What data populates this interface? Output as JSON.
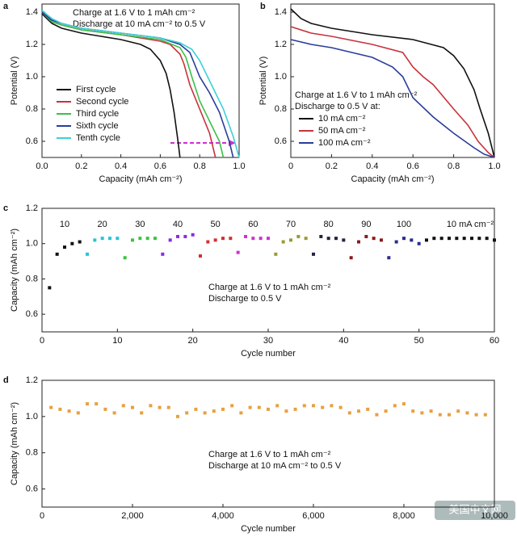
{
  "watermark": "美国中文网",
  "chart_data": [
    {
      "type": "line",
      "panel_label": "a",
      "xlabel": "Capacity (mAh cm⁻²)",
      "ylabel": "Potential (V)",
      "annotations": [
        "Charge at 1.6 V to 1 mAh cm⁻²",
        "Discharge at 10 mA cm⁻² to 0.5 V"
      ],
      "xlim": [
        0,
        1.0
      ],
      "ylim": [
        0.5,
        1.45
      ],
      "xticks": [
        {
          "value": 0,
          "label": "0.0"
        },
        0.2,
        0.4,
        0.6,
        0.8,
        {
          "value": 1,
          "label": "1.0"
        }
      ],
      "yticks": [
        0.6,
        0.8,
        {
          "value": 1,
          "label": "1.0"
        },
        1.2,
        1.4
      ],
      "legend": "lower left",
      "series": [
        {
          "name": "First cycle",
          "color": "#111111",
          "x": [
            0,
            0.05,
            0.1,
            0.2,
            0.3,
            0.4,
            0.5,
            0.55,
            0.6,
            0.63,
            0.65,
            0.67,
            0.69,
            0.7
          ],
          "values": [
            1.39,
            1.33,
            1.3,
            1.27,
            1.25,
            1.23,
            1.2,
            1.17,
            1.1,
            1.02,
            0.92,
            0.78,
            0.6,
            0.5
          ]
        },
        {
          "name": "Second cycle",
          "color": "#c8323c",
          "x": [
            0,
            0.05,
            0.1,
            0.2,
            0.4,
            0.6,
            0.65,
            0.7,
            0.72,
            0.75,
            0.8,
            0.85,
            0.88
          ],
          "values": [
            1.4,
            1.34,
            1.32,
            1.29,
            1.26,
            1.22,
            1.2,
            1.14,
            1.08,
            0.95,
            0.8,
            0.65,
            0.5
          ]
        },
        {
          "name": "Third cycle",
          "color": "#3cbf4a",
          "x": [
            0,
            0.05,
            0.1,
            0.2,
            0.4,
            0.6,
            0.7,
            0.73,
            0.76,
            0.8,
            0.86,
            0.9,
            0.92
          ],
          "values": [
            1.4,
            1.34,
            1.32,
            1.29,
            1.26,
            1.23,
            1.18,
            1.12,
            1.0,
            0.85,
            0.7,
            0.6,
            0.5
          ]
        },
        {
          "name": "Sixth cycle",
          "color": "#2a3c9c",
          "x": [
            0,
            0.05,
            0.1,
            0.2,
            0.4,
            0.6,
            0.7,
            0.75,
            0.8,
            0.85,
            0.9,
            0.95,
            0.97
          ],
          "values": [
            1.4,
            1.35,
            1.33,
            1.3,
            1.27,
            1.24,
            1.2,
            1.15,
            1.0,
            0.9,
            0.78,
            0.6,
            0.5
          ]
        },
        {
          "name": "Tenth cycle",
          "color": "#3cd0d8",
          "x": [
            0,
            0.05,
            0.1,
            0.2,
            0.4,
            0.6,
            0.7,
            0.76,
            0.8,
            0.86,
            0.92,
            0.97,
            1.0
          ],
          "values": [
            1.41,
            1.36,
            1.33,
            1.3,
            1.27,
            1.24,
            1.21,
            1.17,
            1.1,
            0.95,
            0.8,
            0.63,
            0.5
          ]
        }
      ]
    },
    {
      "type": "line",
      "panel_label": "b",
      "xlabel": "Capacity (mAh cm⁻²)",
      "ylabel": "Potential (V)",
      "annotations": [
        "Charge at 1.6 V to 1 mAh cm⁻²",
        "Discharge to 0.5 V at:"
      ],
      "xlim": [
        0,
        1.0
      ],
      "ylim": [
        0.5,
        1.45
      ],
      "xticks": [
        0,
        0.2,
        0.4,
        0.6,
        0.8,
        {
          "value": 1,
          "label": "1.0"
        }
      ],
      "yticks": [
        0.6,
        0.8,
        {
          "value": 1,
          "label": "1.0"
        },
        1.2,
        1.4
      ],
      "legend": "lower left",
      "legend_text_colored": true,
      "series": [
        {
          "name": "10 mA cm⁻²",
          "color": "#111111",
          "x": [
            0,
            0.05,
            0.1,
            0.2,
            0.4,
            0.6,
            0.75,
            0.8,
            0.85,
            0.9,
            0.93,
            0.97,
            1.0
          ],
          "values": [
            1.42,
            1.36,
            1.33,
            1.3,
            1.26,
            1.23,
            1.18,
            1.13,
            1.05,
            0.92,
            0.8,
            0.65,
            0.5
          ]
        },
        {
          "name": "50 mA cm⁻²",
          "color": "#c8323c",
          "x": [
            0,
            0.1,
            0.2,
            0.4,
            0.55,
            0.6,
            0.65,
            0.7,
            0.8,
            0.87,
            0.92,
            0.97,
            1.0
          ],
          "values": [
            1.31,
            1.27,
            1.25,
            1.2,
            1.15,
            1.06,
            1.0,
            0.95,
            0.8,
            0.7,
            0.6,
            0.53,
            0.5
          ]
        },
        {
          "name": "100 mA cm⁻²",
          "color": "#2a3c9c",
          "x": [
            0,
            0.1,
            0.2,
            0.4,
            0.5,
            0.55,
            0.6,
            0.7,
            0.8,
            0.9,
            0.95,
            1.0
          ],
          "values": [
            1.23,
            1.2,
            1.18,
            1.12,
            1.06,
            1.0,
            0.87,
            0.75,
            0.65,
            0.56,
            0.52,
            0.5
          ]
        }
      ]
    },
    {
      "type": "scatter",
      "panel_label": "c",
      "xlabel": "Cycle number",
      "ylabel": "Capacity (mAh cm⁻²)",
      "annotations": [
        "Charge at 1.6 V to 1 mAh cm⁻²",
        "Discharge to 0.5 V"
      ],
      "xlim": [
        0,
        60
      ],
      "ylim": [
        0.5,
        1.2
      ],
      "xticks": [
        0,
        10,
        20,
        30,
        40,
        50,
        60
      ],
      "yticks": [
        0.6,
        0.8,
        {
          "value": 1,
          "label": "1.0"
        },
        1.2
      ],
      "legend": "group labels",
      "series": [
        {
          "name": "10",
          "color": "#111111",
          "x": [
            1,
            2,
            3,
            4,
            5
          ],
          "values": [
            0.75,
            0.94,
            0.98,
            1.0,
            1.01
          ]
        },
        {
          "name": "20",
          "color": "#27c4d8",
          "x": [
            6,
            7,
            8,
            9,
            10
          ],
          "values": [
            0.94,
            1.02,
            1.03,
            1.03,
            1.03
          ]
        },
        {
          "name": "30",
          "color": "#3cc43c",
          "x": [
            11,
            12,
            13,
            14,
            15
          ],
          "values": [
            0.92,
            1.02,
            1.03,
            1.03,
            1.03
          ]
        },
        {
          "name": "40",
          "color": "#8a2be2",
          "x": [
            16,
            17,
            18,
            19,
            20
          ],
          "values": [
            0.94,
            1.02,
            1.04,
            1.04,
            1.05
          ]
        },
        {
          "name": "50",
          "color": "#d03030",
          "x": [
            21,
            22,
            23,
            24,
            25
          ],
          "values": [
            0.93,
            1.01,
            1.02,
            1.03,
            1.03
          ]
        },
        {
          "name": "60",
          "color": "#d030d0",
          "x": [
            26,
            27,
            28,
            29,
            30
          ],
          "values": [
            0.95,
            1.04,
            1.03,
            1.03,
            1.03
          ]
        },
        {
          "name": "70",
          "color": "#9a9a30",
          "x": [
            31,
            32,
            33,
            34,
            35
          ],
          "values": [
            0.94,
            1.01,
            1.02,
            1.04,
            1.03
          ]
        },
        {
          "name": "80",
          "color": "#222244",
          "x": [
            36,
            37,
            38,
            39,
            40
          ],
          "values": [
            0.94,
            1.04,
            1.03,
            1.03,
            1.02
          ]
        },
        {
          "name": "90",
          "color": "#8b1a1a",
          "x": [
            41,
            42,
            43,
            44,
            45
          ],
          "values": [
            0.92,
            1.01,
            1.04,
            1.03,
            1.02
          ]
        },
        {
          "name": "100",
          "color": "#2a2a90",
          "x": [
            46,
            47,
            48,
            49,
            50
          ],
          "values": [
            0.92,
            1.01,
            1.03,
            1.02,
            1.0
          ]
        },
        {
          "name": "10 mA cm⁻²",
          "color": "#111111",
          "x": [
            51,
            52,
            53,
            54,
            55,
            56,
            57,
            58,
            59,
            60
          ],
          "values": [
            1.02,
            1.03,
            1.03,
            1.03,
            1.03,
            1.03,
            1.03,
            1.03,
            1.03,
            1.02
          ]
        }
      ]
    },
    {
      "type": "scatter",
      "panel_label": "d",
      "xlabel": "Cycle number",
      "ylabel": "Capacity (mAh cm⁻²)",
      "annotations": [
        "Charge at 1.6 V to 1 mAh cm⁻²",
        "Discharge at 10 mA cm⁻² to 0.5 V"
      ],
      "xlim": [
        0,
        10000
      ],
      "ylim": [
        0.5,
        1.2
      ],
      "xticks": [
        0,
        {
          "value": 2000,
          "label": "2,000"
        },
        {
          "value": 4000,
          "label": "4,000"
        },
        {
          "value": 6000,
          "label": "6,000"
        },
        {
          "value": 8000,
          "label": "8,000"
        },
        {
          "value": 10000,
          "label": "10,000"
        }
      ],
      "yticks": [
        0.6,
        0.8,
        {
          "value": 1,
          "label": "1.0"
        },
        1.2
      ],
      "series": [
        {
          "color": "#e8a040",
          "x": [
            200,
            400,
            600,
            800,
            1000,
            1200,
            1400,
            1600,
            1800,
            2000,
            2200,
            2400,
            2600,
            2800,
            3000,
            3200,
            3400,
            3600,
            3800,
            4000,
            4200,
            4400,
            4600,
            4800,
            5000,
            5200,
            5400,
            5600,
            5800,
            6000,
            6200,
            6400,
            6600,
            6800,
            7000,
            7200,
            7400,
            7600,
            7800,
            8000,
            8200,
            8400,
            8600,
            8800,
            9000,
            9200,
            9400,
            9600,
            9800
          ],
          "values": [
            1.05,
            1.04,
            1.03,
            1.02,
            1.07,
            1.07,
            1.04,
            1.02,
            1.06,
            1.05,
            1.02,
            1.06,
            1.05,
            1.05,
            1.0,
            1.02,
            1.04,
            1.02,
            1.03,
            1.04,
            1.06,
            1.02,
            1.05,
            1.05,
            1.04,
            1.06,
            1.03,
            1.04,
            1.06,
            1.06,
            1.05,
            1.06,
            1.05,
            1.02,
            1.03,
            1.04,
            1.01,
            1.03,
            1.06,
            1.07,
            1.03,
            1.02,
            1.03,
            1.01,
            1.01,
            1.03,
            1.02,
            1.01,
            1.01
          ]
        }
      ]
    }
  ]
}
